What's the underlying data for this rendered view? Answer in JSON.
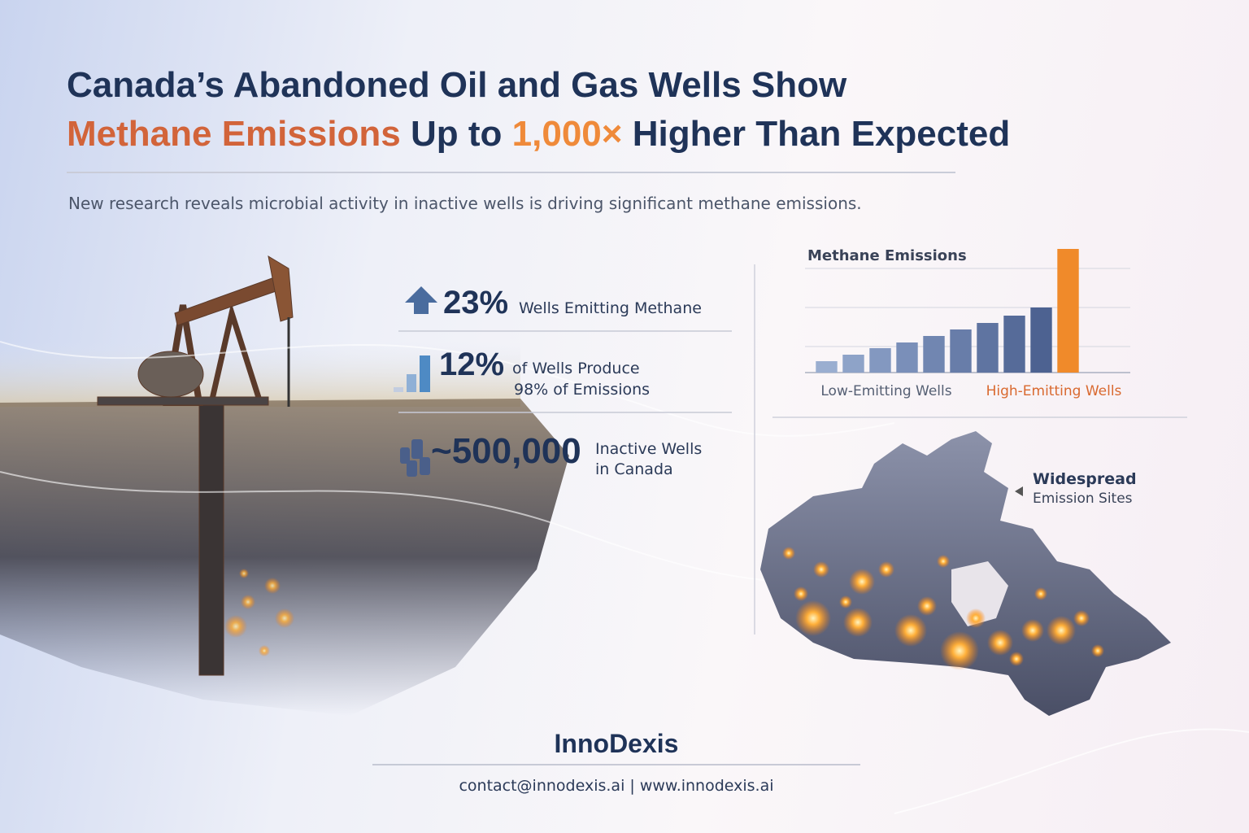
{
  "header": {
    "line1": "Canada’s Abandoned Oil and Gas Wells Show",
    "line2_highlight": "Methane Emissions",
    "line2_mid": "Up to",
    "line2_number": "1,000×",
    "line2_end": "Higher Than Expected",
    "subtitle": "New research reveals microbial activity in inactive wells is driving significant methane emissions."
  },
  "stats": [
    {
      "value": "23%",
      "label": "Wells Emitting Methane"
    },
    {
      "value": "12%",
      "label": "of Wells Produce",
      "label2": "98% of Emissions"
    },
    {
      "value": "~500,000",
      "label": "Inactive Wells",
      "label2": "in Canada"
    }
  ],
  "chart_data": {
    "type": "bar",
    "title": "Methane Emissions",
    "categories": [
      null,
      null,
      null,
      null,
      null,
      null,
      null,
      null,
      null,
      null
    ],
    "values": [
      14,
      22,
      30,
      37,
      45,
      53,
      61,
      70,
      80,
      152
    ],
    "colors": [
      "#9aaed0",
      "#8ea3c8",
      "#8398c0",
      "#7a8fb9",
      "#7186b1",
      "#687da9",
      "#5f74a1",
      "#566b99",
      "#4d6291",
      "#f08a2a"
    ],
    "ylim": [
      0,
      160
    ],
    "group_labels": [
      {
        "text": "Low-Emitting Wells",
        "color": "#555f73"
      },
      {
        "text": "High-Emitting Wells",
        "color": "#d9692f"
      }
    ]
  },
  "map": {
    "label_line1": "Widespread",
    "label_line2": "Emission Sites"
  },
  "footer": {
    "brand": "InnoDexis",
    "contact": "contact@innodexis.ai | www.innodexis.ai"
  }
}
